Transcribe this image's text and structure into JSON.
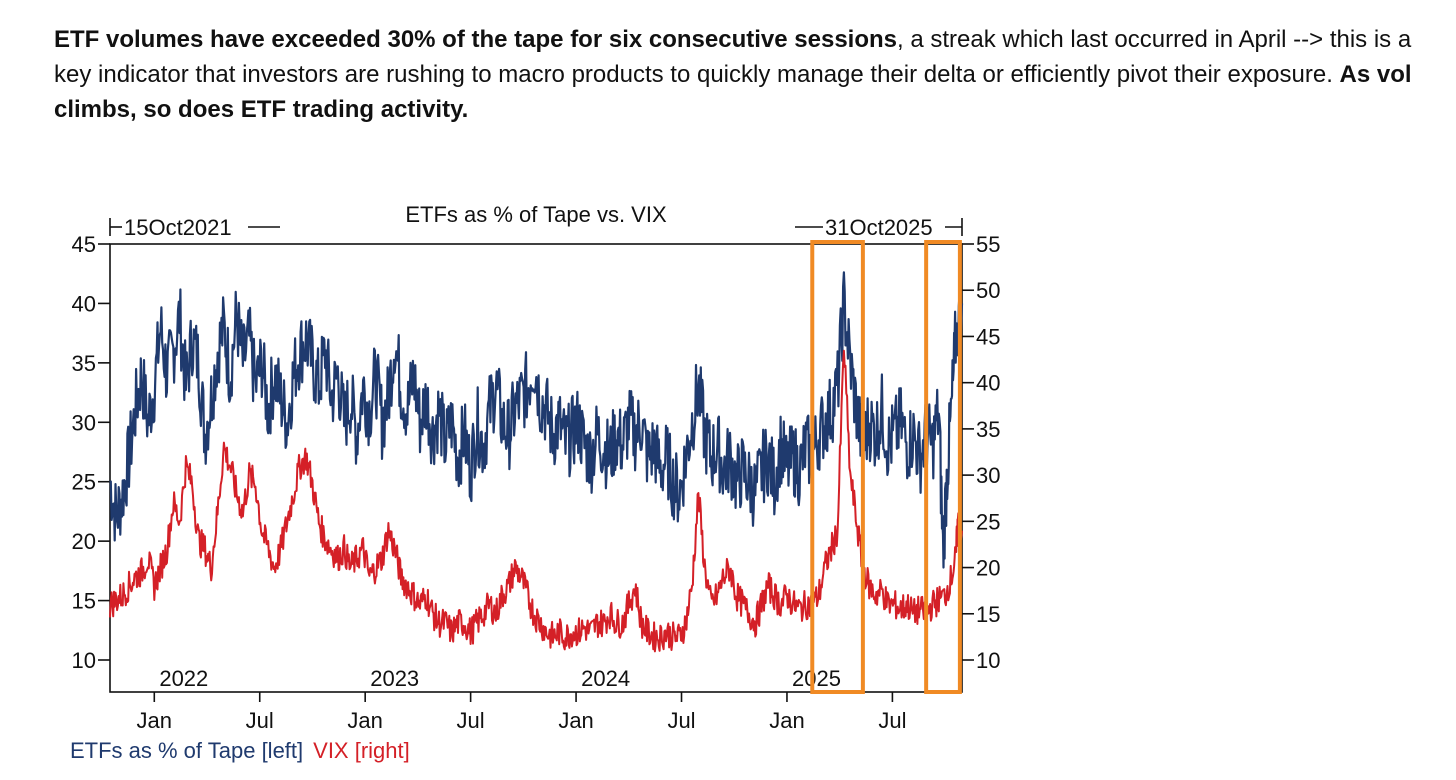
{
  "paragraph": {
    "bold_lead": "ETF volumes have exceeded 30% of the tape for six consecutive sessions",
    "text_mid": ", a streak which last occurred in April --> this is a key indicator that investors are rushing to macro products to quickly manage their delta or efficiently pivot their exposure. ",
    "bold_tail": "As vol climbs, so does ETF trading activity."
  },
  "chart_data": {
    "type": "line",
    "title": "ETFs as % of Tape vs. VIX",
    "start_label": "15Oct2021",
    "end_label": "31Oct2025",
    "left_axis": {
      "label": "ETFs as % of Tape [left]",
      "ylim": [
        7.5,
        45
      ],
      "ticks": [
        10,
        15,
        20,
        25,
        30,
        35,
        40,
        45
      ]
    },
    "right_axis": {
      "label": "VIX [right]",
      "ylim": [
        5,
        55
      ],
      "ticks": [
        10,
        15,
        20,
        25,
        30,
        35,
        40,
        45,
        50,
        55
      ]
    },
    "xlim": [
      2021.79,
      2025.83
    ],
    "year_labels": [
      {
        "label": "2022",
        "x": 2022.14
      },
      {
        "label": "2023",
        "x": 2023.14
      },
      {
        "label": "2024",
        "x": 2024.14
      },
      {
        "label": "2025",
        "x": 2025.14
      }
    ],
    "month_ticks": [
      {
        "label": "Jan",
        "x": 2022.0
      },
      {
        "label": "Jul",
        "x": 2022.5
      },
      {
        "label": "Jan",
        "x": 2023.0
      },
      {
        "label": "Jul",
        "x": 2023.5
      },
      {
        "label": "Jan",
        "x": 2024.0
      },
      {
        "label": "Jul",
        "x": 2024.5
      },
      {
        "label": "Jan",
        "x": 2025.0
      },
      {
        "label": "Jul",
        "x": 2025.5
      }
    ],
    "series": [
      {
        "name": "ETFs as % of Tape",
        "axis": "left",
        "color": "#1f3a6e",
        "points": [
          [
            2021.79,
            25
          ],
          [
            2021.82,
            22
          ],
          [
            2021.85,
            24
          ],
          [
            2021.88,
            27
          ],
          [
            2021.91,
            31
          ],
          [
            2021.94,
            34
          ],
          [
            2021.97,
            30
          ],
          [
            2022.0,
            33
          ],
          [
            2022.03,
            38
          ],
          [
            2022.06,
            34
          ],
          [
            2022.09,
            36
          ],
          [
            2022.12,
            39
          ],
          [
            2022.15,
            33
          ],
          [
            2022.18,
            37
          ],
          [
            2022.21,
            35
          ],
          [
            2022.24,
            29
          ],
          [
            2022.27,
            32
          ],
          [
            2022.3,
            36
          ],
          [
            2022.33,
            38
          ],
          [
            2022.36,
            34
          ],
          [
            2022.39,
            39
          ],
          [
            2022.42,
            35
          ],
          [
            2022.45,
            37
          ],
          [
            2022.48,
            33
          ],
          [
            2022.51,
            35
          ],
          [
            2022.54,
            31
          ],
          [
            2022.57,
            34
          ],
          [
            2022.6,
            32
          ],
          [
            2022.63,
            30
          ],
          [
            2022.66,
            34
          ],
          [
            2022.69,
            36
          ],
          [
            2022.72,
            37
          ],
          [
            2022.75,
            35
          ],
          [
            2022.78,
            33
          ],
          [
            2022.81,
            36
          ],
          [
            2022.84,
            32
          ],
          [
            2022.87,
            34
          ],
          [
            2022.9,
            30
          ],
          [
            2022.93,
            32
          ],
          [
            2022.96,
            29
          ],
          [
            2022.99,
            33
          ],
          [
            2023.02,
            31
          ],
          [
            2023.05,
            34
          ],
          [
            2023.08,
            30
          ],
          [
            2023.11,
            32
          ],
          [
            2023.14,
            37
          ],
          [
            2023.17,
            33
          ],
          [
            2023.2,
            31
          ],
          [
            2023.23,
            34
          ],
          [
            2023.26,
            30
          ],
          [
            2023.29,
            32
          ],
          [
            2023.32,
            29
          ],
          [
            2023.35,
            31
          ],
          [
            2023.38,
            28
          ],
          [
            2023.41,
            30
          ],
          [
            2023.44,
            27
          ],
          [
            2023.47,
            29
          ],
          [
            2023.5,
            26
          ],
          [
            2023.53,
            30
          ],
          [
            2023.56,
            28
          ],
          [
            2023.59,
            31
          ],
          [
            2023.62,
            33
          ],
          [
            2023.65,
            30
          ],
          [
            2023.68,
            29
          ],
          [
            2023.71,
            31
          ],
          [
            2023.74,
            32
          ],
          [
            2023.77,
            33
          ],
          [
            2023.8,
            35
          ],
          [
            2023.83,
            32
          ],
          [
            2023.86,
            31
          ],
          [
            2023.89,
            29
          ],
          [
            2023.92,
            30
          ],
          [
            2023.95,
            28
          ],
          [
            2023.98,
            29
          ],
          [
            2024.01,
            30
          ],
          [
            2024.04,
            28
          ],
          [
            2024.07,
            27
          ],
          [
            2024.1,
            29
          ],
          [
            2024.13,
            28
          ],
          [
            2024.16,
            27
          ],
          [
            2024.19,
            29
          ],
          [
            2024.22,
            28
          ],
          [
            2024.25,
            30
          ],
          [
            2024.28,
            29
          ],
          [
            2024.31,
            30
          ],
          [
            2024.34,
            27
          ],
          [
            2024.37,
            28
          ],
          [
            2024.4,
            26
          ],
          [
            2024.43,
            27
          ],
          [
            2024.46,
            25
          ],
          [
            2024.49,
            24
          ],
          [
            2024.52,
            27
          ],
          [
            2024.55,
            30
          ],
          [
            2024.58,
            33
          ],
          [
            2024.61,
            29
          ],
          [
            2024.64,
            27
          ],
          [
            2024.67,
            28
          ],
          [
            2024.7,
            26
          ],
          [
            2024.73,
            27
          ],
          [
            2024.76,
            25
          ],
          [
            2024.79,
            26
          ],
          [
            2024.82,
            25
          ],
          [
            2024.85,
            24
          ],
          [
            2024.88,
            26
          ],
          [
            2024.91,
            27
          ],
          [
            2024.94,
            25
          ],
          [
            2024.97,
            28
          ],
          [
            2025.0,
            26
          ],
          [
            2025.03,
            27
          ],
          [
            2025.06,
            26
          ],
          [
            2025.09,
            28
          ],
          [
            2025.12,
            27
          ],
          [
            2025.15,
            29
          ],
          [
            2025.18,
            30
          ],
          [
            2025.21,
            31
          ],
          [
            2025.24,
            33
          ],
          [
            2025.27,
            40
          ],
          [
            2025.3,
            35
          ],
          [
            2025.33,
            31
          ],
          [
            2025.36,
            28
          ],
          [
            2025.39,
            30
          ],
          [
            2025.42,
            29
          ],
          [
            2025.45,
            31
          ],
          [
            2025.48,
            28
          ],
          [
            2025.51,
            29
          ],
          [
            2025.54,
            30
          ],
          [
            2025.57,
            28
          ],
          [
            2025.6,
            29
          ],
          [
            2025.63,
            27
          ],
          [
            2025.66,
            29
          ],
          [
            2025.69,
            28
          ],
          [
            2025.72,
            31
          ],
          [
            2025.74,
            19
          ],
          [
            2025.76,
            26
          ],
          [
            2025.78,
            31
          ],
          [
            2025.8,
            37
          ],
          [
            2025.83,
            40
          ]
        ]
      },
      {
        "name": "VIX",
        "axis": "right",
        "color": "#d42027",
        "points": [
          [
            2021.79,
            16
          ],
          [
            2021.82,
            16.5
          ],
          [
            2021.85,
            17
          ],
          [
            2021.88,
            18
          ],
          [
            2021.91,
            19
          ],
          [
            2021.94,
            19.5
          ],
          [
            2021.97,
            21
          ],
          [
            2022.0,
            18
          ],
          [
            2022.03,
            20
          ],
          [
            2022.06,
            22
          ],
          [
            2022.09,
            27
          ],
          [
            2022.12,
            25
          ],
          [
            2022.15,
            31
          ],
          [
            2022.18,
            29
          ],
          [
            2022.21,
            23
          ],
          [
            2022.24,
            22
          ],
          [
            2022.27,
            20
          ],
          [
            2022.3,
            26
          ],
          [
            2022.33,
            33
          ],
          [
            2022.36,
            31
          ],
          [
            2022.39,
            28
          ],
          [
            2022.42,
            26
          ],
          [
            2022.45,
            30
          ],
          [
            2022.48,
            29
          ],
          [
            2022.51,
            24
          ],
          [
            2022.54,
            22
          ],
          [
            2022.57,
            20
          ],
          [
            2022.6,
            22
          ],
          [
            2022.63,
            25
          ],
          [
            2022.66,
            28
          ],
          [
            2022.69,
            31
          ],
          [
            2022.72,
            32
          ],
          [
            2022.75,
            29
          ],
          [
            2022.78,
            25
          ],
          [
            2022.81,
            23
          ],
          [
            2022.84,
            22
          ],
          [
            2022.87,
            21
          ],
          [
            2022.9,
            22
          ],
          [
            2022.93,
            20
          ],
          [
            2022.96,
            21
          ],
          [
            2022.99,
            22
          ],
          [
            2023.02,
            19
          ],
          [
            2023.05,
            20
          ],
          [
            2023.08,
            21
          ],
          [
            2023.11,
            24
          ],
          [
            2023.14,
            22
          ],
          [
            2023.17,
            19
          ],
          [
            2023.2,
            18
          ],
          [
            2023.23,
            17
          ],
          [
            2023.26,
            16
          ],
          [
            2023.29,
            17
          ],
          [
            2023.32,
            15
          ],
          [
            2023.35,
            14
          ],
          [
            2023.38,
            14
          ],
          [
            2023.41,
            13
          ],
          [
            2023.44,
            14
          ],
          [
            2023.47,
            14
          ],
          [
            2023.5,
            13
          ],
          [
            2023.53,
            14
          ],
          [
            2023.56,
            15
          ],
          [
            2023.59,
            16
          ],
          [
            2023.62,
            15
          ],
          [
            2023.65,
            17
          ],
          [
            2023.68,
            18
          ],
          [
            2023.71,
            20
          ],
          [
            2023.74,
            19
          ],
          [
            2023.77,
            17
          ],
          [
            2023.8,
            15
          ],
          [
            2023.83,
            14
          ],
          [
            2023.86,
            13
          ],
          [
            2023.89,
            12.5
          ],
          [
            2023.92,
            13
          ],
          [
            2023.95,
            12.5
          ],
          [
            2023.98,
            13
          ],
          [
            2024.01,
            13
          ],
          [
            2024.04,
            13.5
          ],
          [
            2024.07,
            13
          ],
          [
            2024.1,
            14
          ],
          [
            2024.13,
            14
          ],
          [
            2024.16,
            15
          ],
          [
            2024.19,
            14
          ],
          [
            2024.22,
            14
          ],
          [
            2024.25,
            16
          ],
          [
            2024.28,
            18
          ],
          [
            2024.31,
            14
          ],
          [
            2024.34,
            13
          ],
          [
            2024.37,
            12.5
          ],
          [
            2024.4,
            12.5
          ],
          [
            2024.43,
            13
          ],
          [
            2024.46,
            12.5
          ],
          [
            2024.49,
            12.5
          ],
          [
            2024.52,
            14
          ],
          [
            2024.55,
            18
          ],
          [
            2024.58,
            28
          ],
          [
            2024.61,
            20
          ],
          [
            2024.64,
            16
          ],
          [
            2024.67,
            17
          ],
          [
            2024.7,
            19
          ],
          [
            2024.73,
            20
          ],
          [
            2024.76,
            17
          ],
          [
            2024.79,
            16
          ],
          [
            2024.82,
            15
          ],
          [
            2024.85,
            14
          ],
          [
            2024.88,
            16
          ],
          [
            2024.91,
            18
          ],
          [
            2024.94,
            17
          ],
          [
            2024.97,
            16
          ],
          [
            2025.0,
            17
          ],
          [
            2025.03,
            16
          ],
          [
            2025.06,
            15.5
          ],
          [
            2025.09,
            16
          ],
          [
            2025.12,
            16
          ],
          [
            2025.15,
            17
          ],
          [
            2025.18,
            20
          ],
          [
            2025.21,
            22
          ],
          [
            2025.24,
            24
          ],
          [
            2025.27,
            44
          ],
          [
            2025.3,
            30
          ],
          [
            2025.33,
            25
          ],
          [
            2025.36,
            20
          ],
          [
            2025.39,
            18
          ],
          [
            2025.42,
            17
          ],
          [
            2025.45,
            17.5
          ],
          [
            2025.48,
            16
          ],
          [
            2025.51,
            16
          ],
          [
            2025.54,
            15.5
          ],
          [
            2025.57,
            16
          ],
          [
            2025.6,
            15
          ],
          [
            2025.63,
            15.5
          ],
          [
            2025.66,
            15
          ],
          [
            2025.69,
            16
          ],
          [
            2025.72,
            16.5
          ],
          [
            2025.75,
            17
          ],
          [
            2025.78,
            19
          ],
          [
            2025.8,
            21
          ],
          [
            2025.81,
            25
          ],
          [
            2025.83,
            24
          ]
        ]
      }
    ],
    "highlights": [
      {
        "x_start": 2025.12,
        "x_end": 2025.36,
        "color": "#f08a24"
      },
      {
        "x_start": 2025.66,
        "x_end": 2025.82,
        "color": "#f08a24"
      }
    ]
  }
}
